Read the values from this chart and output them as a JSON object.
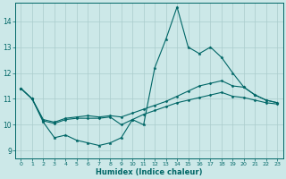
{
  "xlabel": "Humidex (Indice chaleur)",
  "bg_color": "#cce8e8",
  "grid_color": "#aacccc",
  "line_color": "#006666",
  "xlim": [
    -0.5,
    23.5
  ],
  "ylim": [
    8.7,
    14.7
  ],
  "yticks": [
    9,
    10,
    11,
    12,
    13,
    14
  ],
  "xticks": [
    0,
    1,
    2,
    3,
    4,
    5,
    6,
    7,
    8,
    9,
    10,
    11,
    12,
    13,
    14,
    15,
    16,
    17,
    18,
    19,
    20,
    21,
    22,
    23
  ],
  "line1_x": [
    0,
    1,
    2,
    3,
    4,
    5,
    6,
    7,
    8,
    9,
    10,
    11,
    12,
    13,
    14,
    15,
    16,
    17,
    18,
    19,
    20,
    21,
    22,
    23
  ],
  "line1_y": [
    11.4,
    11.0,
    10.1,
    9.5,
    9.6,
    9.4,
    9.3,
    9.2,
    9.3,
    9.5,
    10.2,
    10.0,
    12.2,
    13.3,
    14.55,
    13.0,
    12.75,
    13.0,
    12.6,
    12.0,
    11.45,
    11.15,
    10.95,
    10.85
  ],
  "line2_x": [
    0,
    1,
    2,
    3,
    4,
    5,
    6,
    7,
    8,
    9,
    10,
    11,
    12,
    13,
    14,
    15,
    16,
    17,
    18,
    19,
    20,
    21,
    22,
    23
  ],
  "line2_y": [
    11.4,
    11.0,
    10.2,
    10.1,
    10.25,
    10.3,
    10.35,
    10.3,
    10.35,
    10.3,
    10.45,
    10.6,
    10.75,
    10.9,
    11.1,
    11.3,
    11.5,
    11.6,
    11.7,
    11.5,
    11.45,
    11.15,
    10.95,
    10.85
  ],
  "line3_x": [
    0,
    1,
    2,
    3,
    4,
    5,
    6,
    7,
    8,
    9,
    10,
    11,
    12,
    13,
    14,
    15,
    16,
    17,
    18,
    19,
    20,
    21,
    22,
    23
  ],
  "line3_y": [
    11.4,
    11.0,
    10.15,
    10.05,
    10.2,
    10.25,
    10.25,
    10.25,
    10.3,
    10.0,
    10.2,
    10.4,
    10.55,
    10.7,
    10.85,
    10.95,
    11.05,
    11.15,
    11.25,
    11.1,
    11.05,
    10.95,
    10.85,
    10.8
  ]
}
